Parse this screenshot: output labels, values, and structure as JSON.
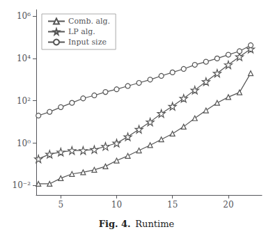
{
  "chart_data": {
    "type": "line",
    "annotations": [
      "Fig. 4.",
      "Runtime"
    ],
    "x": [
      3,
      4,
      5,
      6,
      7,
      8,
      9,
      10,
      11,
      12,
      13,
      14,
      15,
      16,
      17,
      18,
      19,
      20,
      21,
      22
    ],
    "series": [
      {
        "name": "Comb. alg.",
        "color": "#555555",
        "marker": "triangle",
        "values": [
          0.012,
          0.012,
          0.022,
          0.035,
          0.042,
          0.055,
          0.08,
          0.15,
          0.25,
          0.45,
          0.8,
          1.5,
          2.8,
          6,
          15,
          35,
          80,
          150,
          250,
          2000
        ]
      },
      {
        "name": "LP alg.",
        "color": "#555555",
        "marker": "star",
        "values": [
          0.18,
          0.3,
          0.38,
          0.45,
          0.45,
          0.5,
          0.7,
          1.0,
          2.0,
          4.5,
          10,
          25,
          55,
          130,
          320,
          800,
          2000,
          5000,
          12000,
          28000
        ]
      },
      {
        "name": "Input size",
        "color": "#555555",
        "marker": "circle",
        "values": [
          20,
          30,
          50,
          80,
          130,
          180,
          260,
          350,
          500,
          700,
          1000,
          1500,
          2200,
          3200,
          5000,
          7000,
          10000,
          15000,
          22000,
          42000
        ]
      }
    ],
    "xlim": [
      2.8,
      23.0
    ],
    "xticks": [
      5,
      10,
      15,
      20
    ],
    "ylim": [
      0.0035481338923357532,
      1995262.3149688789
    ],
    "yticks": [
      {
        "value": 0.01,
        "label": "10⁻²"
      },
      {
        "value": 1,
        "label": "10⁰"
      },
      {
        "value": 100,
        "label": "10²"
      },
      {
        "value": 10000,
        "label": "10⁴"
      },
      {
        "value": 1000000,
        "label": "10⁶"
      }
    ],
    "log": "y",
    "grid": false,
    "legend": "upper left"
  }
}
